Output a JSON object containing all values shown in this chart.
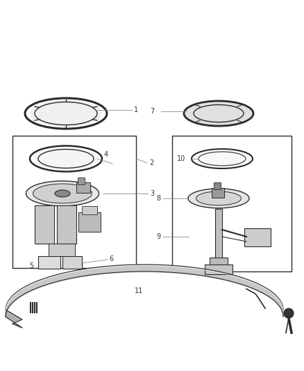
{
  "bg_color": "#ffffff",
  "lc": "#2a2a2a",
  "lc_light": "#666666",
  "lc_gray": "#999999",
  "fc_dark": "#444444",
  "fc_mid": "#888888",
  "fc_light": "#bbbbbb",
  "fc_lighter": "#dddddd",
  "fig_w": 4.38,
  "fig_h": 5.33,
  "dpi": 100,
  "label_fs": 7,
  "label_color": "#333333",
  "leader_lw": 0.6,
  "leader_color": "#888888"
}
